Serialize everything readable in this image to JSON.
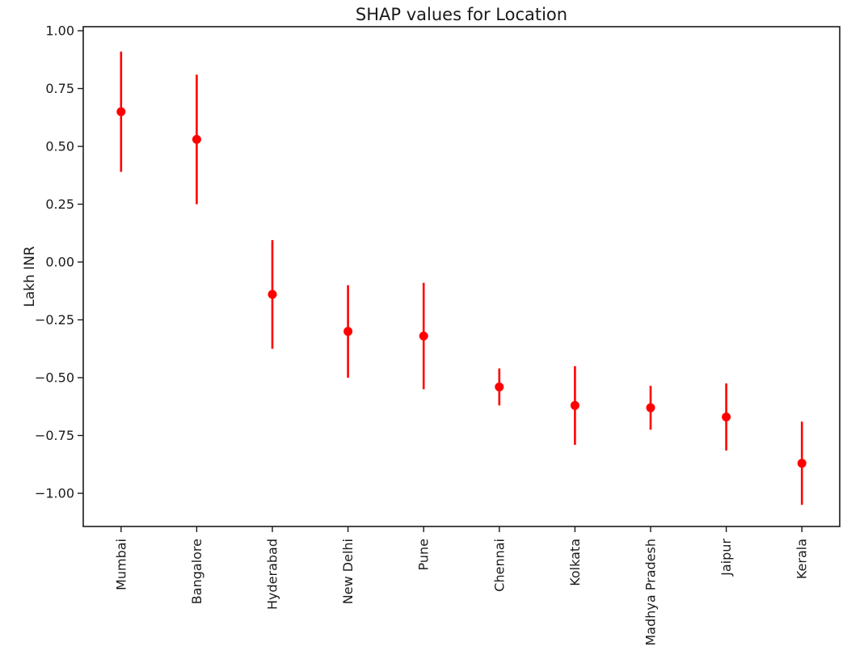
{
  "figure": {
    "title": "SHAP values for Location",
    "ylabel": "Lakh INR",
    "background_color": "#ffffff",
    "axis_color": "#1a1a1a",
    "text_color": "#1a1a1a",
    "marker_color": "#ff0000"
  },
  "chart_data": {
    "type": "scatter",
    "subtype": "errorbar-points",
    "title": "SHAP values for Location",
    "xlabel": "",
    "ylabel": "Lakh INR",
    "categories": [
      "Mumbai",
      "Bangalore",
      "Hyderabad",
      "New Delhi",
      "Pune",
      "Chennai",
      "Kolkata",
      "Madhya Pradesh",
      "Jaipur",
      "Kerala"
    ],
    "values": [
      0.65,
      0.53,
      -0.14,
      -0.3,
      -0.32,
      -0.54,
      -0.62,
      -0.63,
      -0.67,
      -0.87
    ],
    "errors": [
      0.26,
      0.28,
      0.235,
      0.2,
      0.23,
      0.08,
      0.17,
      0.095,
      0.145,
      0.18
    ],
    "yticks": [
      1.0,
      0.75,
      0.5,
      0.25,
      0.0,
      -0.25,
      -0.5,
      -0.75,
      -1.0
    ],
    "ytick_labels": [
      "1.00",
      "0.75",
      "0.50",
      "0.25",
      "0.00",
      "−0.25",
      "−0.50",
      "−0.75",
      "−1.00"
    ],
    "ylim": [
      -1.14,
      1.02
    ],
    "grid": false,
    "legend": null,
    "marker": "circle",
    "marker_color": "#ff0000",
    "errorbar_color": "#ff0000",
    "x_tick_label_rotation_deg": 90
  }
}
